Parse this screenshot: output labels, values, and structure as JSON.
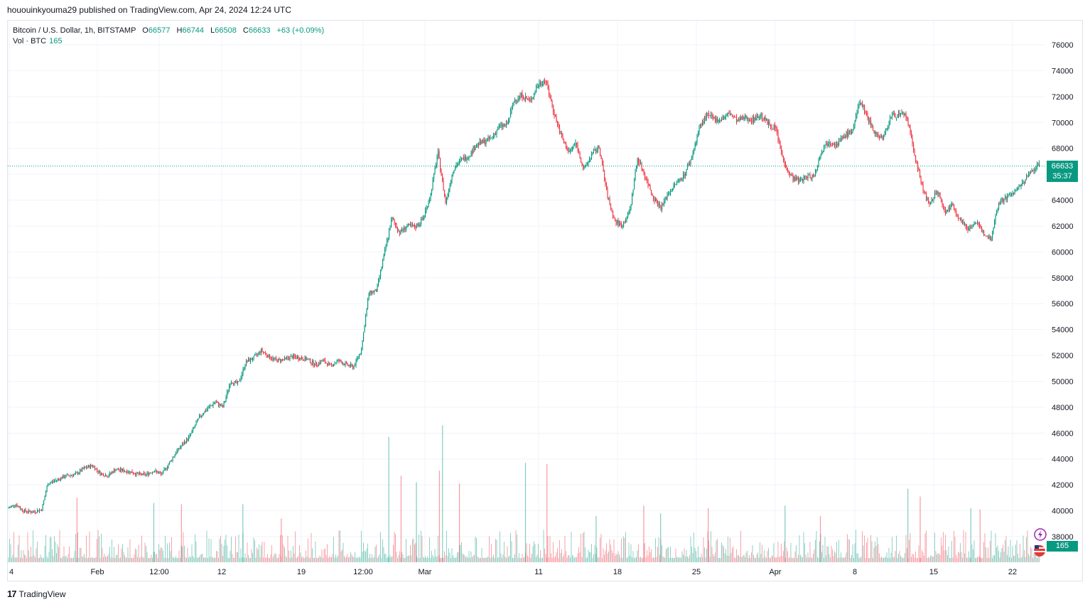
{
  "header": {
    "published": "hououinkyouma29 published on TradingView.com, Apr 24, 2024 12:24 UTC"
  },
  "legend": {
    "symbol": "Bitcoin / U.S. Dollar, 1h, BITSTAMP",
    "open_label": "O",
    "open": "66577",
    "high_label": "H",
    "high": "66744",
    "low_label": "L",
    "low": "66508",
    "close_label": "C",
    "close": "66633",
    "change": "+63 (+0.09%)"
  },
  "volume_legend": {
    "label": "Vol · BTC",
    "value": "165"
  },
  "price_tag": {
    "price": "66633",
    "countdown": "35:37"
  },
  "volume_tag": {
    "value": "165"
  },
  "footer": {
    "logo_mark": "17",
    "logo_text": "TradingView"
  },
  "colors": {
    "up": "#089981",
    "down": "#f23645",
    "grid": "#f0f3fa",
    "text": "#131722"
  },
  "icons": [
    "flash-icon",
    "us-flag-icon",
    "tradingview-logo-icon"
  ],
  "chart_data": {
    "type": "candlestick",
    "symbol": "Bitcoin / U.S. Dollar",
    "interval": "1h",
    "exchange": "BITSTAMP",
    "y_ticks": [
      38000,
      40000,
      42000,
      44000,
      46000,
      48000,
      50000,
      52000,
      54000,
      56000,
      58000,
      60000,
      62000,
      64000,
      66000,
      68000,
      70000,
      72000,
      74000,
      76000
    ],
    "ylim": [
      37000,
      77000
    ],
    "x_ticks": [
      "4",
      "Feb",
      "12:00",
      "12",
      "19",
      "12:00",
      "Mar",
      "11",
      "18",
      "25",
      "Apr",
      "8",
      "15",
      "22"
    ],
    "current_price": 66633,
    "grid": true,
    "price_path": [
      [
        0,
        40200
      ],
      [
        0.5,
        40500
      ],
      [
        1,
        40000
      ],
      [
        1.6,
        39900
      ],
      [
        2.2,
        40100
      ],
      [
        2.6,
        42100
      ],
      [
        3.2,
        42400
      ],
      [
        3.8,
        42700
      ],
      [
        4.4,
        42800
      ],
      [
        5.0,
        43300
      ],
      [
        5.5,
        43500
      ],
      [
        6.0,
        42900
      ],
      [
        6.5,
        42700
      ],
      [
        7.0,
        43200
      ],
      [
        7.5,
        43100
      ],
      [
        8.0,
        43000
      ],
      [
        8.5,
        42800
      ],
      [
        9.0,
        42800
      ],
      [
        9.5,
        43100
      ],
      [
        10.0,
        42800
      ],
      [
        10.3,
        43300
      ],
      [
        11.0,
        44600
      ],
      [
        11.8,
        45700
      ],
      [
        12.5,
        47300
      ],
      [
        13.0,
        47900
      ],
      [
        13.5,
        48400
      ],
      [
        14.0,
        48000
      ],
      [
        14.5,
        50000
      ],
      [
        15.0,
        49800
      ],
      [
        15.5,
        51500
      ],
      [
        16.0,
        51800
      ],
      [
        16.5,
        52400
      ],
      [
        17.0,
        51900
      ],
      [
        17.5,
        51600
      ],
      [
        18.0,
        51700
      ],
      [
        18.5,
        51900
      ],
      [
        19.0,
        51800
      ],
      [
        19.5,
        51700
      ],
      [
        20.0,
        51300
      ],
      [
        20.5,
        51600
      ],
      [
        21.0,
        51200
      ],
      [
        21.5,
        51600
      ],
      [
        22.0,
        51300
      ],
      [
        22.5,
        51100
      ],
      [
        23.0,
        52400
      ],
      [
        23.5,
        56800
      ],
      [
        24.0,
        57000
      ],
      [
        24.5,
        59800
      ],
      [
        25.0,
        62600
      ],
      [
        25.5,
        61500
      ],
      [
        26.0,
        62000
      ],
      [
        26.5,
        61900
      ],
      [
        27.0,
        62500
      ],
      [
        27.5,
        64300
      ],
      [
        28.0,
        67700
      ],
      [
        28.5,
        63800
      ],
      [
        29.0,
        66400
      ],
      [
        29.5,
        67100
      ],
      [
        30.0,
        67400
      ],
      [
        30.5,
        68300
      ],
      [
        31.0,
        68500
      ],
      [
        31.5,
        68800
      ],
      [
        32.0,
        69700
      ],
      [
        32.5,
        69800
      ],
      [
        33.0,
        71800
      ],
      [
        33.5,
        72100
      ],
      [
        34.0,
        71600
      ],
      [
        34.5,
        72900
      ],
      [
        35.0,
        73300
      ],
      [
        35.5,
        71000
      ],
      [
        36.0,
        69000
      ],
      [
        36.5,
        67700
      ],
      [
        37.0,
        68400
      ],
      [
        37.5,
        66300
      ],
      [
        38.0,
        67500
      ],
      [
        38.5,
        68100
      ],
      [
        39.0,
        64500
      ],
      [
        39.5,
        62400
      ],
      [
        40.0,
        62000
      ],
      [
        40.5,
        63200
      ],
      [
        41.0,
        67300
      ],
      [
        41.5,
        65800
      ],
      [
        42.0,
        64300
      ],
      [
        42.5,
        63400
      ],
      [
        43.0,
        64500
      ],
      [
        43.5,
        65300
      ],
      [
        44.0,
        65900
      ],
      [
        44.5,
        67200
      ],
      [
        45.0,
        69500
      ],
      [
        45.5,
        70600
      ],
      [
        46.0,
        70200
      ],
      [
        46.5,
        70300
      ],
      [
        47.0,
        70700
      ],
      [
        47.5,
        70100
      ],
      [
        48.0,
        70400
      ],
      [
        48.5,
        70200
      ],
      [
        49.0,
        70600
      ],
      [
        49.5,
        69900
      ],
      [
        50.0,
        69500
      ],
      [
        50.5,
        67000
      ],
      [
        51.0,
        65800
      ],
      [
        51.5,
        65500
      ],
      [
        52.0,
        65800
      ],
      [
        52.5,
        65900
      ],
      [
        53.0,
        67900
      ],
      [
        53.5,
        68600
      ],
      [
        54.0,
        68300
      ],
      [
        54.5,
        69000
      ],
      [
        55.0,
        69400
      ],
      [
        55.5,
        71700
      ],
      [
        56.0,
        70300
      ],
      [
        56.5,
        69100
      ],
      [
        57.0,
        68800
      ],
      [
        57.5,
        70500
      ],
      [
        58.0,
        70600
      ],
      [
        58.5,
        70500
      ],
      [
        59.0,
        67700
      ],
      [
        59.5,
        65200
      ],
      [
        60.0,
        63500
      ],
      [
        60.5,
        64800
      ],
      [
        61.0,
        63100
      ],
      [
        61.5,
        63600
      ],
      [
        62.0,
        62500
      ],
      [
        62.5,
        61800
      ],
      [
        63.0,
        62300
      ],
      [
        63.5,
        61500
      ],
      [
        64.0,
        61000
      ],
      [
        64.5,
        63800
      ],
      [
        65.0,
        64200
      ],
      [
        65.5,
        64600
      ],
      [
        66.0,
        65200
      ],
      [
        66.5,
        66000
      ],
      [
        67.0,
        66700
      ],
      [
        67.2,
        66633
      ]
    ],
    "x_domain": [
      0,
      67.5
    ],
    "volume_spikes": [
      [
        4.5,
        41000
      ],
      [
        9.5,
        40600
      ],
      [
        11.3,
        40500
      ],
      [
        15.3,
        40500
      ],
      [
        17.8,
        39400
      ],
      [
        24.8,
        45700
      ],
      [
        25.6,
        42700
      ],
      [
        26.6,
        42200
      ],
      [
        28.1,
        43100
      ],
      [
        28.3,
        46600
      ],
      [
        29.4,
        42100
      ],
      [
        33.7,
        43700
      ],
      [
        35.1,
        43600
      ],
      [
        38.3,
        39600
      ],
      [
        41.4,
        40400
      ],
      [
        42.5,
        39800
      ],
      [
        45.6,
        40200
      ],
      [
        50.6,
        40400
      ],
      [
        52.9,
        39600
      ],
      [
        58.6,
        41700
      ],
      [
        59.4,
        41100
      ],
      [
        62.7,
        40200
      ],
      [
        63.3,
        40100
      ]
    ]
  }
}
